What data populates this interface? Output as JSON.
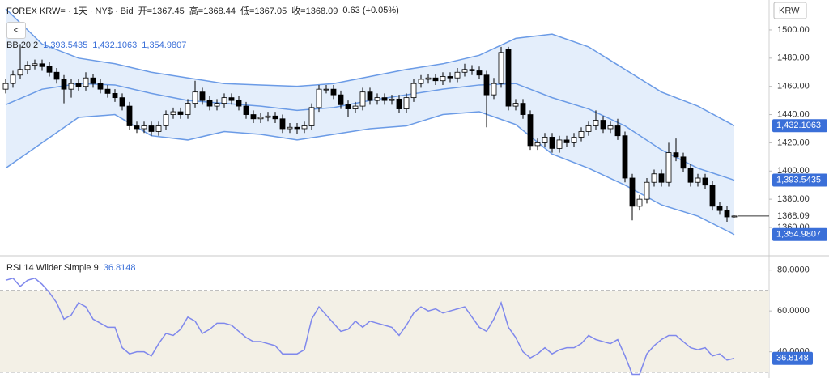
{
  "header": {
    "title": "FOREX KRW= · 1天 · NY$ · Bid",
    "ohlc_labels": [
      "开=",
      "高=",
      "低=",
      "收="
    ],
    "change": "0.63 (+0.05%)"
  },
  "chart_data": [
    {
      "type": "candlestick",
      "currency": "KRW",
      "open": [
        1458,
        1462,
        1468,
        1472,
        1475,
        1476,
        1474,
        1470,
        1465,
        1458,
        1462,
        1460,
        1466,
        1462,
        1458,
        1455,
        1452,
        1446,
        1432,
        1430,
        1432,
        1428,
        1432,
        1440,
        1442,
        1440,
        1448,
        1456,
        1450,
        1446,
        1448,
        1452,
        1450,
        1446,
        1440,
        1437,
        1438,
        1439,
        1437,
        1430,
        1431,
        1430,
        1432,
        1445,
        1458,
        1458,
        1454,
        1447,
        1444,
        1446,
        1456,
        1450,
        1452,
        1450,
        1451,
        1444,
        1452,
        1462,
        1465,
        1466,
        1464,
        1467,
        1466,
        1470,
        1472,
        1471,
        1468,
        1454,
        1462,
        1486,
        1446,
        1448,
        1440,
        1418,
        1420,
        1424,
        1416,
        1422,
        1420,
        1424,
        1428,
        1432,
        1436,
        1430,
        1432,
        1425,
        1395,
        1375,
        1380,
        1392,
        1398,
        1392,
        1413,
        1410,
        1402,
        1392,
        1395,
        1390,
        1375,
        1372,
        1367.45
      ],
      "high": [
        1465,
        1471,
        1490,
        1478,
        1479,
        1479,
        1477,
        1473,
        1468,
        1465,
        1465,
        1470,
        1469,
        1465,
        1461,
        1458,
        1455,
        1449,
        1435,
        1435,
        1435,
        1435,
        1443,
        1445,
        1445,
        1451,
        1464,
        1459,
        1453,
        1451,
        1455,
        1455,
        1453,
        1449,
        1443,
        1441,
        1442,
        1442,
        1440,
        1434,
        1434,
        1435,
        1448,
        1461,
        1461,
        1461,
        1457,
        1450,
        1449,
        1459,
        1459,
        1455,
        1455,
        1454,
        1454,
        1455,
        1465,
        1468,
        1469,
        1469,
        1470,
        1470,
        1473,
        1476,
        1475,
        1474,
        1471,
        1466,
        1488,
        1488,
        1451,
        1451,
        1443,
        1423,
        1427,
        1427,
        1425,
        1425,
        1427,
        1431,
        1435,
        1443,
        1439,
        1435,
        1437,
        1428,
        1398,
        1383,
        1395,
        1401,
        1401,
        1420,
        1423,
        1413,
        1405,
        1398,
        1398,
        1393,
        1378,
        1375,
        1368.44
      ],
      "low": [
        1455,
        1459,
        1465,
        1469,
        1472,
        1471,
        1467,
        1462,
        1448,
        1452,
        1457,
        1457,
        1459,
        1455,
        1452,
        1449,
        1443,
        1429,
        1427,
        1427,
        1425,
        1425,
        1429,
        1437,
        1437,
        1437,
        1445,
        1447,
        1443,
        1443,
        1445,
        1447,
        1443,
        1437,
        1434,
        1434,
        1435,
        1434,
        1427,
        1427,
        1426,
        1427,
        1429,
        1442,
        1455,
        1451,
        1444,
        1438,
        1441,
        1443,
        1447,
        1447,
        1447,
        1447,
        1441,
        1441,
        1449,
        1459,
        1462,
        1461,
        1461,
        1463,
        1463,
        1467,
        1468,
        1465,
        1431,
        1451,
        1459,
        1443,
        1443,
        1437,
        1415,
        1415,
        1417,
        1413,
        1413,
        1417,
        1417,
        1421,
        1425,
        1429,
        1427,
        1427,
        1422,
        1392,
        1365,
        1372,
        1377,
        1389,
        1389,
        1389,
        1407,
        1399,
        1389,
        1389,
        1387,
        1372,
        1369,
        1364,
        1367.05
      ],
      "close": [
        1462,
        1468,
        1472,
        1475,
        1476,
        1474,
        1470,
        1465,
        1458,
        1462,
        1460,
        1466,
        1462,
        1458,
        1455,
        1452,
        1446,
        1432,
        1430,
        1432,
        1428,
        1432,
        1440,
        1442,
        1440,
        1448,
        1456,
        1450,
        1446,
        1448,
        1452,
        1450,
        1446,
        1440,
        1437,
        1438,
        1439,
        1437,
        1430,
        1431,
        1430,
        1432,
        1445,
        1458,
        1458,
        1454,
        1447,
        1444,
        1446,
        1456,
        1450,
        1452,
        1450,
        1451,
        1444,
        1452,
        1462,
        1465,
        1466,
        1464,
        1467,
        1466,
        1470,
        1472,
        1471,
        1468,
        1454,
        1462,
        1484,
        1446,
        1448,
        1440,
        1418,
        1420,
        1424,
        1416,
        1422,
        1420,
        1424,
        1428,
        1432,
        1436,
        1430,
        1432,
        1425,
        1395,
        1375,
        1380,
        1392,
        1398,
        1392,
        1413,
        1410,
        1402,
        1392,
        1395,
        1390,
        1375,
        1372,
        1367.46,
        1368.09
      ],
      "up_color": "#ffffff",
      "down_color": "#000000",
      "ylim": [
        1340.5,
        1521.2
      ],
      "yticks": [
        {
          "value": 1500,
          "label": "1500.00"
        },
        {
          "value": 1480,
          "label": "1480.00"
        },
        {
          "value": 1460,
          "label": "1460.00"
        },
        {
          "value": 1440,
          "label": "1440.00"
        },
        {
          "value": 1420,
          "label": "1420.00"
        },
        {
          "value": 1400,
          "label": "1400.00"
        },
        {
          "value": 1380,
          "label": "1380.00"
        },
        {
          "value": 1360,
          "label": "1360.00"
        }
      ],
      "grid": false,
      "overlay": {
        "type": "bollinger",
        "name": "BB 20 2",
        "color": "#6b9be6",
        "fill": "#e4eefb",
        "x": [
          0,
          5,
          10,
          15,
          20,
          25,
          30,
          35,
          40,
          45,
          50,
          55,
          60,
          65,
          70,
          75,
          80,
          85,
          90,
          95,
          100
        ],
        "series": [
          {
            "values": [
              1447,
              1458,
              1462,
              1461,
              1455,
              1450,
              1448,
              1446,
              1443,
              1445,
              1450,
              1454,
              1458,
              1461,
              1462,
              1452,
              1444,
              1432,
              1415,
              1402,
              1393.5435
            ],
            "last_label": "1,393.5435"
          },
          {
            "values": [
              1515,
              1490,
              1480,
              1476,
              1470,
              1466,
              1462,
              1461,
              1460,
              1462,
              1467,
              1472,
              1476,
              1482,
              1494,
              1497,
              1488,
              1472,
              1456,
              1446,
              1432.1063
            ],
            "last_label": "1,432.1063"
          },
          {
            "values": [
              1402,
              1420,
              1438,
              1440,
              1425,
              1422,
              1428,
              1426,
              1422,
              1426,
              1430,
              1432,
              1440,
              1442,
              1433,
              1412,
              1402,
              1390,
              1376,
              1368,
              1354.9807
            ],
            "last_label": "1,354.9807"
          }
        ]
      }
    },
    {
      "type": "line",
      "name": "RSI 14 Wilder Simple 9",
      "color": "#7f88ec",
      "values": [
        75,
        76,
        72,
        75,
        76,
        73,
        69,
        64,
        56,
        58,
        64,
        62,
        56,
        54,
        52,
        52,
        42,
        39,
        40,
        40,
        38,
        44,
        49,
        48,
        51,
        57,
        55,
        49,
        51,
        54,
        54,
        53,
        50,
        47,
        45,
        45,
        44,
        43,
        39,
        39,
        39,
        41,
        56,
        62,
        58,
        54,
        50,
        51,
        55,
        52,
        55,
        54,
        53,
        52,
        48,
        53,
        59,
        62,
        60,
        61,
        59,
        60,
        61,
        62,
        57,
        52,
        50,
        56,
        64,
        52,
        47,
        40,
        37,
        39,
        42,
        39,
        41,
        42,
        42,
        44,
        48,
        46,
        45,
        44,
        46,
        38,
        29,
        29,
        39,
        43,
        46,
        48,
        48,
        45,
        42,
        41,
        42,
        38,
        39,
        36,
        36.8148
      ],
      "ylim": [
        27.2,
        86.2
      ],
      "yticks": [
        {
          "value": 80,
          "label": "80.0000"
        },
        {
          "value": 60,
          "label": "60.0000"
        },
        {
          "value": 40,
          "label": "40.0000"
        }
      ],
      "band": [
        30,
        70
      ],
      "band_color": "#f3f0e6"
    }
  ]
}
